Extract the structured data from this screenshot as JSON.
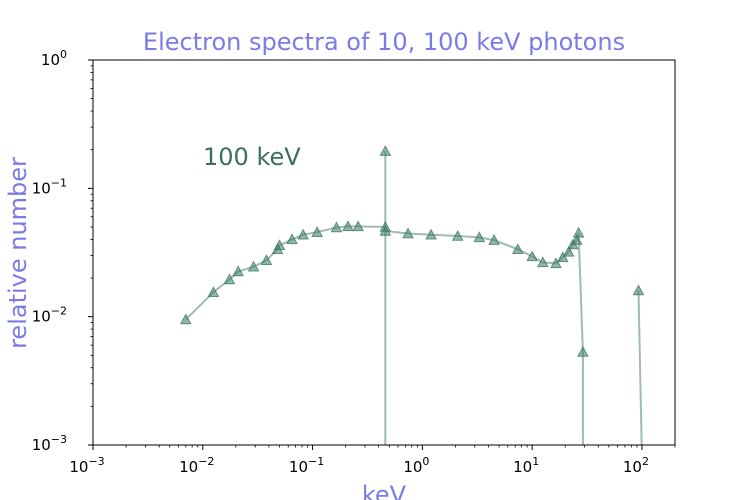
{
  "chart_data": {
    "type": "line",
    "title": "Electron spectra of 10, 100 keV photons",
    "xlabel": "keV",
    "ylabel": "relative number",
    "xscale": "log",
    "yscale": "log",
    "xlim": [
      0.001,
      200
    ],
    "ylim": [
      0.001,
      1
    ],
    "xticks": [
      {
        "base": "10",
        "exp": "−3",
        "value": 0.001
      },
      {
        "base": "10",
        "exp": "−2",
        "value": 0.01
      },
      {
        "base": "10",
        "exp": "−1",
        "value": 0.1
      },
      {
        "base": "10",
        "exp": "0",
        "value": 1
      },
      {
        "base": "10",
        "exp": "1",
        "value": 10
      },
      {
        "base": "10",
        "exp": "2",
        "value": 100
      }
    ],
    "yticks": [
      {
        "base": "10",
        "exp": "−3",
        "value": 0.001
      },
      {
        "base": "10",
        "exp": "−2",
        "value": 0.01
      },
      {
        "base": "10",
        "exp": "−1",
        "value": 0.1
      },
      {
        "base": "10",
        "exp": "0",
        "value": 1
      }
    ],
    "grid": false,
    "annotation": {
      "text": "100 keV",
      "x": 0.011,
      "y": 0.155
    },
    "series": [
      {
        "color": "#3d7a65",
        "marker": "triangle",
        "x": [
          0.007,
          0.0125,
          0.0175,
          0.021,
          0.029,
          0.038,
          0.048,
          0.05,
          0.065,
          0.082,
          0.11,
          0.165,
          0.21,
          0.26,
          0.46,
          0.46,
          0.46,
          0.46,
          0.74,
          1.2,
          2.1,
          3.3,
          4.5,
          7.4,
          10.0,
          12.5,
          16.5,
          19.0,
          21.5,
          23.5,
          25.5,
          26.5,
          29.0,
          29.0
        ],
        "y": [
          0.0095,
          0.0155,
          0.0195,
          0.0225,
          0.0245,
          0.0275,
          0.0335,
          0.036,
          0.04,
          0.0435,
          0.0455,
          0.0495,
          0.0505,
          0.0505,
          0.05,
          0.0008,
          0.195,
          0.0465,
          0.0445,
          0.0435,
          0.0425,
          0.0415,
          0.0395,
          0.0335,
          0.0295,
          0.0265,
          0.026,
          0.029,
          0.032,
          0.0365,
          0.0395,
          0.045,
          0.0053,
          0.0008
        ],
        "markers": [
          true,
          true,
          true,
          true,
          true,
          true,
          true,
          true,
          true,
          true,
          true,
          true,
          true,
          true,
          true,
          false,
          true,
          true,
          true,
          true,
          true,
          true,
          true,
          true,
          true,
          true,
          true,
          true,
          true,
          true,
          true,
          true,
          true,
          false
        ]
      },
      {
        "color": "#3d7a65",
        "marker": "triangle",
        "x": [
          93,
          100
        ],
        "y": [
          0.016,
          0.0008
        ],
        "markers": [
          true,
          false
        ]
      }
    ]
  }
}
